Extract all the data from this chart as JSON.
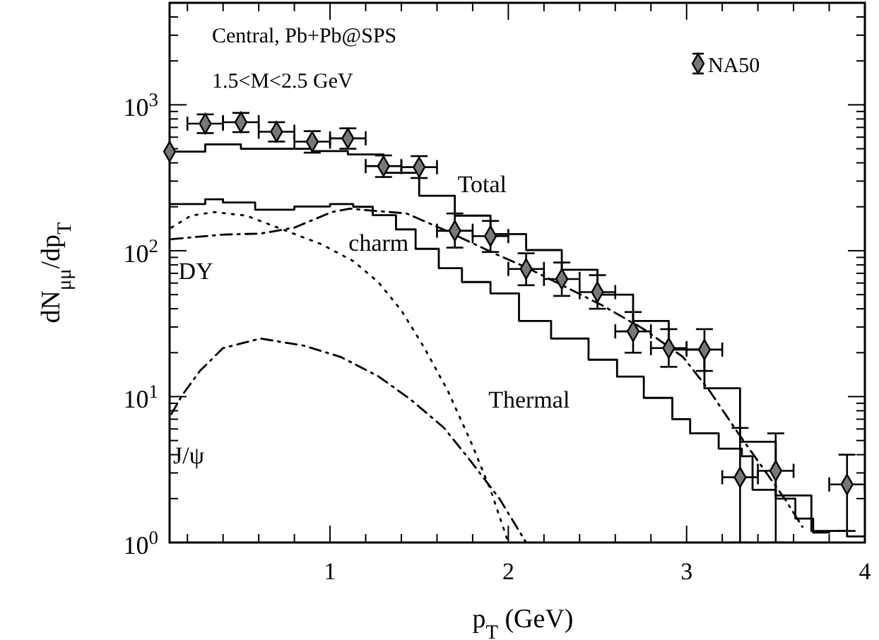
{
  "chart_data": {
    "type": "line",
    "xlabel": "p$_{T}$ (GeV)",
    "ylabel": "dN$_{μμ}$/dp$_{T}$",
    "annotations": [
      "Central, Pb+Pb@SPS",
      "1.5<M<2.5 GeV"
    ],
    "xlim": [
      0.1,
      4.0
    ],
    "ylim": [
      1,
      5000
    ],
    "log": "y",
    "legend": "top right",
    "xticks": [
      {
        "value": 0.2,
        "label": null
      },
      {
        "value": 0.4,
        "label": null
      },
      {
        "value": 0.6,
        "label": null
      },
      {
        "value": 0.8,
        "label": null
      },
      1,
      {
        "value": 1.2,
        "label": null
      },
      {
        "value": 1.4,
        "label": null
      },
      {
        "value": 1.6,
        "label": null
      },
      {
        "value": 1.8,
        "label": null
      },
      2,
      {
        "value": 2.2,
        "label": null
      },
      {
        "value": 2.4,
        "label": null
      },
      {
        "value": 2.6,
        "label": null
      },
      {
        "value": 2.8,
        "label": null
      },
      3,
      {
        "value": 3.2,
        "label": null
      },
      {
        "value": 3.4,
        "label": null
      },
      {
        "value": 3.6,
        "label": null
      },
      {
        "value": 3.8,
        "label": null
      },
      4
    ],
    "yticks": [
      {
        "value": 1,
        "label": "10$^{0}$"
      },
      {
        "value": 2,
        "label": null
      },
      {
        "value": 3,
        "label": null
      },
      {
        "value": 4,
        "label": null
      },
      {
        "value": 5,
        "label": null
      },
      {
        "value": 6,
        "label": null
      },
      {
        "value": 7,
        "label": null
      },
      {
        "value": 8,
        "label": null
      },
      {
        "value": 9,
        "label": null
      },
      {
        "value": 10,
        "label": "10$^{1}$"
      },
      {
        "value": 20,
        "label": null
      },
      {
        "value": 30,
        "label": null
      },
      {
        "value": 40,
        "label": null
      },
      {
        "value": 50,
        "label": null
      },
      {
        "value": 60,
        "label": null
      },
      {
        "value": 70,
        "label": null
      },
      {
        "value": 80,
        "label": null
      },
      {
        "value": 90,
        "label": null
      },
      {
        "value": 100,
        "label": "10$^{2}$"
      },
      {
        "value": 200,
        "label": null
      },
      {
        "value": 300,
        "label": null
      },
      {
        "value": 400,
        "label": null
      },
      {
        "value": 500,
        "label": null
      },
      {
        "value": 600,
        "label": null
      },
      {
        "value": 700,
        "label": null
      },
      {
        "value": 800,
        "label": null
      },
      {
        "value": 900,
        "label": null
      },
      {
        "value": 1000,
        "label": "10$^{3}$"
      },
      {
        "value": 2000,
        "label": null
      },
      {
        "value": 3000,
        "label": null
      },
      {
        "value": 4000,
        "label": null
      }
    ],
    "series": [
      {
        "name": "Total",
        "type": "step",
        "color": "#000000",
        "line_style": "solid",
        "x": [
          0.1,
          0.3,
          0.5,
          0.9,
          1.1,
          1.3,
          1.5,
          1.7,
          1.9,
          2.1,
          2.3,
          2.5,
          2.7,
          2.9,
          3.1,
          3.3,
          3.5,
          3.7,
          3.9,
          4.0
        ],
        "values": [
          478,
          535,
          500,
          482,
          457,
          342,
          238,
          174,
          130,
          101,
          74,
          50,
          33,
          21,
          11.4,
          4.9,
          2.1,
          1.2,
          1.1,
          1.1
        ]
      },
      {
        "name": "Thermal",
        "type": "step",
        "color": "#000000",
        "line_style": "solid",
        "x": [
          0.1,
          0.3,
          0.4,
          0.58,
          0.8,
          1.0,
          1.13,
          1.24,
          1.37,
          1.48,
          1.61,
          1.74,
          1.9,
          2.06,
          2.24,
          2.45,
          2.61,
          2.76,
          2.92,
          3.02,
          3.18,
          3.31,
          3.37,
          3.5,
          3.61,
          3.71,
          3.8
        ],
        "values": [
          209,
          225,
          214,
          191,
          201,
          209,
          200,
          175,
          140,
          103,
          76,
          61,
          51,
          33,
          25,
          17.9,
          13.7,
          9.8,
          7.0,
          5.6,
          4.4,
          3.9,
          2.3,
          2.0,
          1.46,
          1.17,
          1.17
        ]
      },
      {
        "name": "DY",
        "color": "#000000",
        "line_style": "dashed",
        "x": [
          0.11,
          0.4,
          0.61,
          0.8,
          1.01,
          1.11,
          1.43,
          1.64,
          1.92,
          2.11,
          2.53,
          2.76,
          2.98,
          3.13,
          3.29,
          3.55,
          3.65
        ],
        "values": [
          120,
          129,
          131,
          144,
          184,
          194,
          180,
          139,
          96,
          76,
          42,
          29,
          18.7,
          10.9,
          5.6,
          2.0,
          1.28
        ]
      },
      {
        "name": "charm",
        "color": "#000000",
        "line_style": "dotted",
        "x": [
          0.11,
          0.22,
          0.35,
          0.53,
          0.74,
          0.95,
          1.13,
          1.27,
          1.4,
          1.53,
          1.66,
          1.79,
          1.9,
          2.0
        ],
        "values": [
          144,
          174,
          184,
          174,
          139,
          111,
          85,
          61,
          39,
          21.5,
          11,
          4.9,
          2.3,
          1.0
        ]
      },
      {
        "name": "J/ψ",
        "color": "#000000",
        "line_style": "dashed",
        "x": [
          0.11,
          0.17,
          0.27,
          0.4,
          0.61,
          0.85,
          1.06,
          1.27,
          1.45,
          1.64,
          1.79,
          1.95,
          2.1
        ],
        "values": [
          7.6,
          10.2,
          15,
          21.5,
          25,
          22.4,
          18.7,
          13.8,
          9.6,
          6.1,
          3.6,
          2.0,
          1.0
        ]
      },
      {
        "name": "NA50",
        "type": "scatter",
        "color": "#000000",
        "marker": "diamond",
        "x": [
          0.1,
          0.3,
          0.5,
          0.7,
          0.9,
          1.1,
          1.3,
          1.5,
          1.7,
          1.9,
          2.1,
          2.3,
          2.5,
          2.7,
          2.9,
          3.1,
          3.3,
          3.5,
          3.9
        ],
        "values": [
          478,
          743,
          760,
          654,
          559,
          589,
          380,
          374,
          137,
          126,
          75,
          64,
          52,
          28,
          21.5,
          21,
          2.8,
          3.1,
          2.5
        ],
        "errors": [
          null,
          [
            640,
            860
          ],
          [
            650,
            880
          ],
          [
            560,
            760
          ],
          [
            470,
            660
          ],
          [
            500,
            690
          ],
          [
            320,
            450
          ],
          [
            315,
            445
          ],
          [
            105,
            180
          ],
          [
            98,
            160
          ],
          [
            58,
            96
          ],
          [
            49,
            83
          ],
          [
            40,
            68
          ],
          [
            20,
            38
          ],
          [
            16,
            29
          ],
          [
            15,
            29
          ],
          [
            1,
            6.1
          ],
          [
            1,
            5.6
          ],
          [
            1.2,
            4.0
          ]
        ],
        "xerrors": [
          null,
          0.1,
          0.1,
          0.1,
          0.1,
          0.1,
          0.1,
          0.1,
          0.1,
          0.1,
          0.1,
          0.1,
          0.1,
          0.1,
          0.1,
          0.1,
          0.1,
          0.1,
          0.1
        ]
      }
    ]
  }
}
